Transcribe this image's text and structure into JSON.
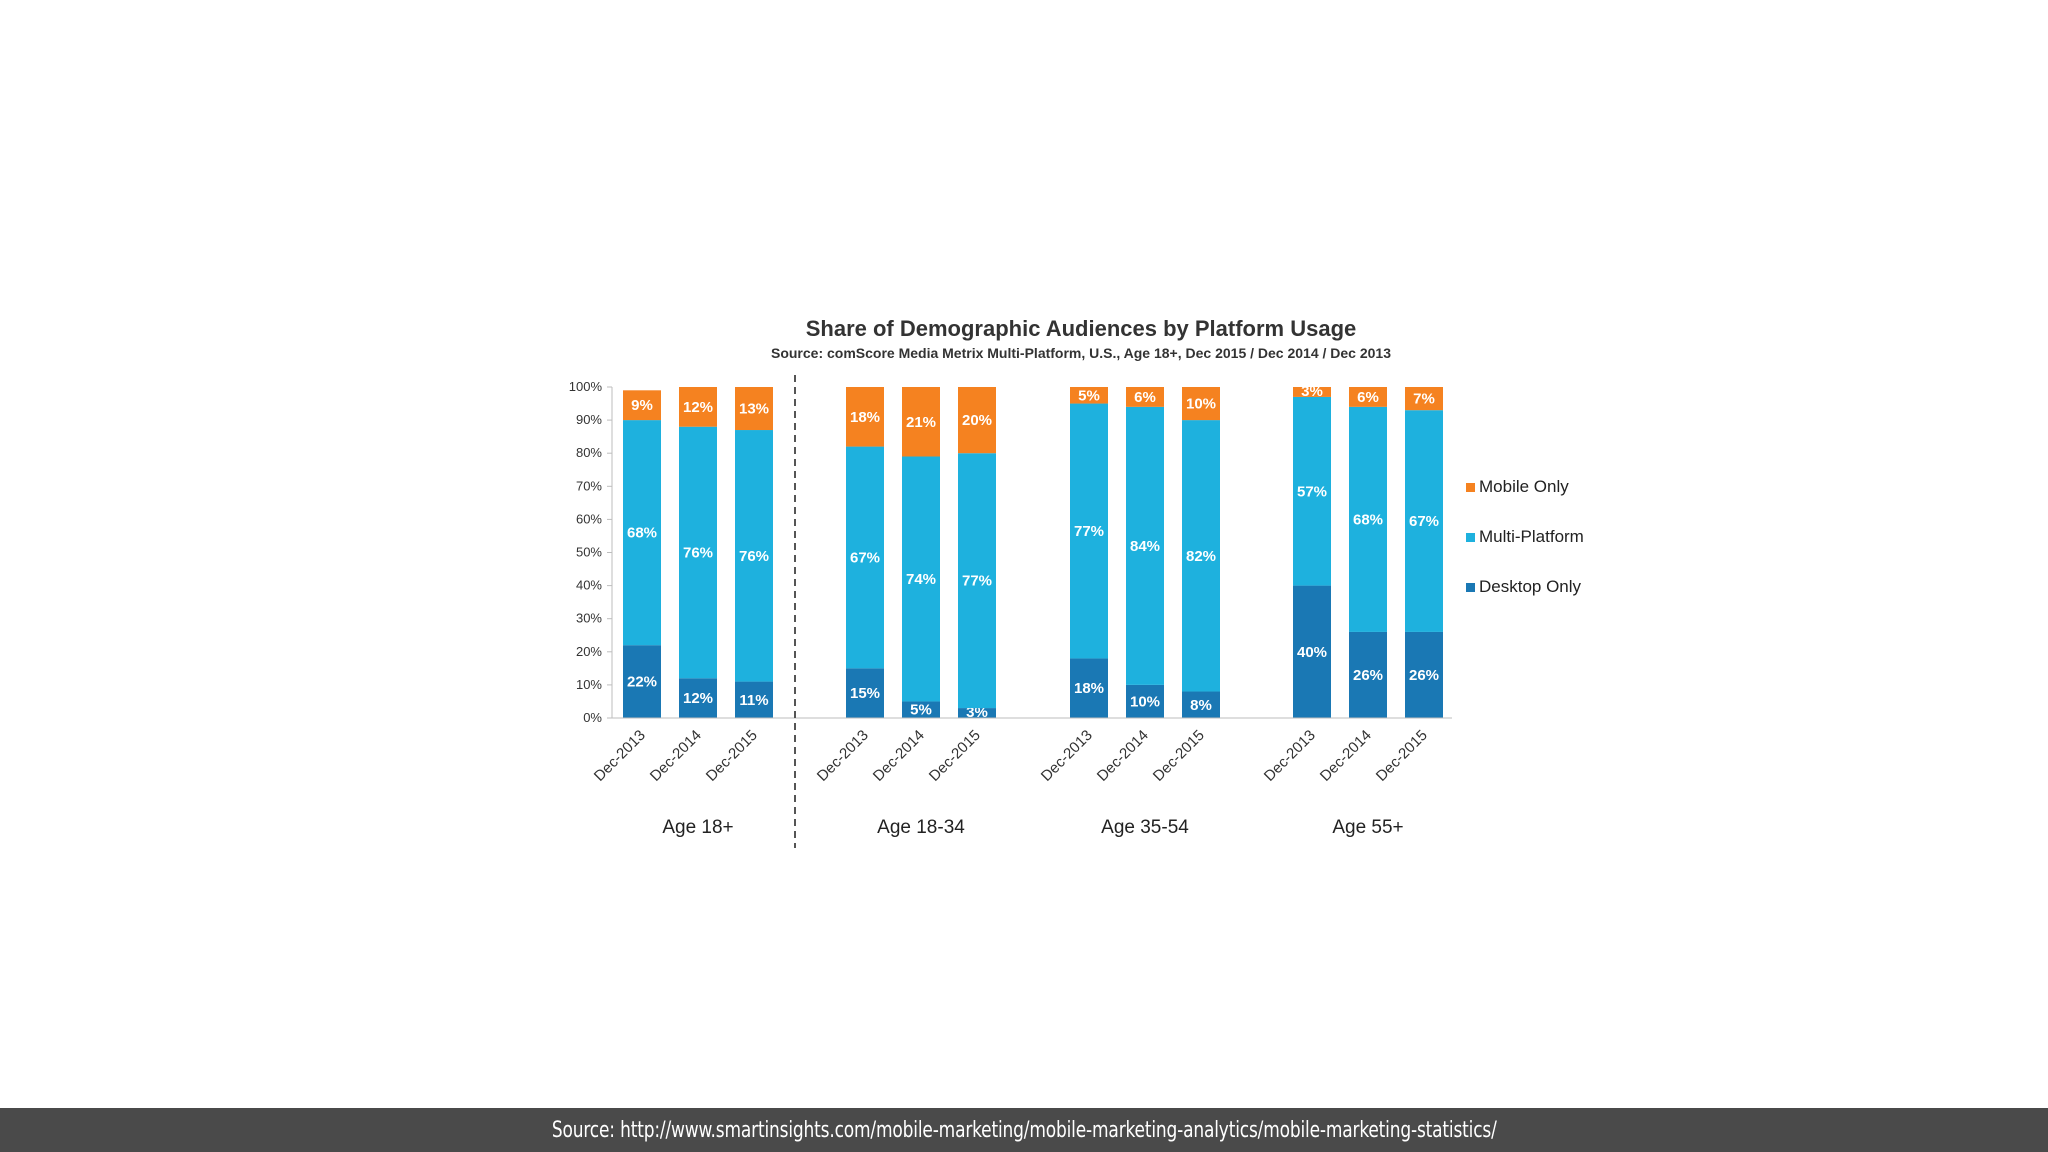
{
  "chart_data": {
    "type": "bar",
    "stacked": true,
    "title": "Share of Demographic Audiences by Platform Usage",
    "subtitle": "Source: comScore Media Metrix Multi-Platform, U.S., Age 18+, Dec 2015 / Dec 2014 / Dec 2013",
    "groups": [
      "Age 18+",
      "Age 18-34",
      "Age 35-54",
      "Age 55+"
    ],
    "categories": [
      "Dec-2013",
      "Dec-2014",
      "Dec-2015"
    ],
    "ylim": [
      0,
      100
    ],
    "y_ticks": [
      "0%",
      "10%",
      "20%",
      "30%",
      "40%",
      "50%",
      "60%",
      "70%",
      "80%",
      "90%",
      "100%"
    ],
    "legend_position": "right",
    "series": [
      {
        "name": "Desktop Only",
        "color": "#1a78b4",
        "values": [
          [
            22,
            12,
            11
          ],
          [
            15,
            5,
            3
          ],
          [
            18,
            10,
            8
          ],
          [
            40,
            26,
            26
          ]
        ],
        "labels": [
          [
            "22%",
            "12%",
            "11%"
          ],
          [
            "15%",
            "5%",
            "3%"
          ],
          [
            "18%",
            "10%",
            "8%"
          ],
          [
            "40%",
            "26%",
            "26%"
          ]
        ]
      },
      {
        "name": "Multi-Platform",
        "color": "#1eb1de",
        "values": [
          [
            68,
            76,
            76
          ],
          [
            67,
            74,
            77
          ],
          [
            77,
            84,
            82
          ],
          [
            57,
            68,
            67
          ]
        ],
        "labels": [
          [
            "68%",
            "76%",
            "76%"
          ],
          [
            "67%",
            "74%",
            "77%"
          ],
          [
            "77%",
            "84%",
            "82%"
          ],
          [
            "57%",
            "68%",
            "67%"
          ]
        ]
      },
      {
        "name": "Mobile Only",
        "color": "#f58220",
        "values": [
          [
            9,
            12,
            13
          ],
          [
            18,
            21,
            20
          ],
          [
            5,
            6,
            10
          ],
          [
            3,
            6,
            7
          ]
        ],
        "labels": [
          [
            "9%",
            "12%",
            "13%"
          ],
          [
            "18%",
            "21%",
            "20%"
          ],
          [
            "5%",
            "6%",
            "10%"
          ],
          [
            "3%",
            "6%",
            "7%"
          ]
        ]
      }
    ],
    "legend_order": [
      "Mobile Only",
      "Multi-Platform",
      "Desktop Only"
    ],
    "annotations": [
      "dashed divider after Age 18+"
    ]
  },
  "footer": {
    "source_text": "Source: http://www.smartinsights.com/mobile-marketing/mobile-marketing-analytics/mobile-marketing-statistics/"
  }
}
